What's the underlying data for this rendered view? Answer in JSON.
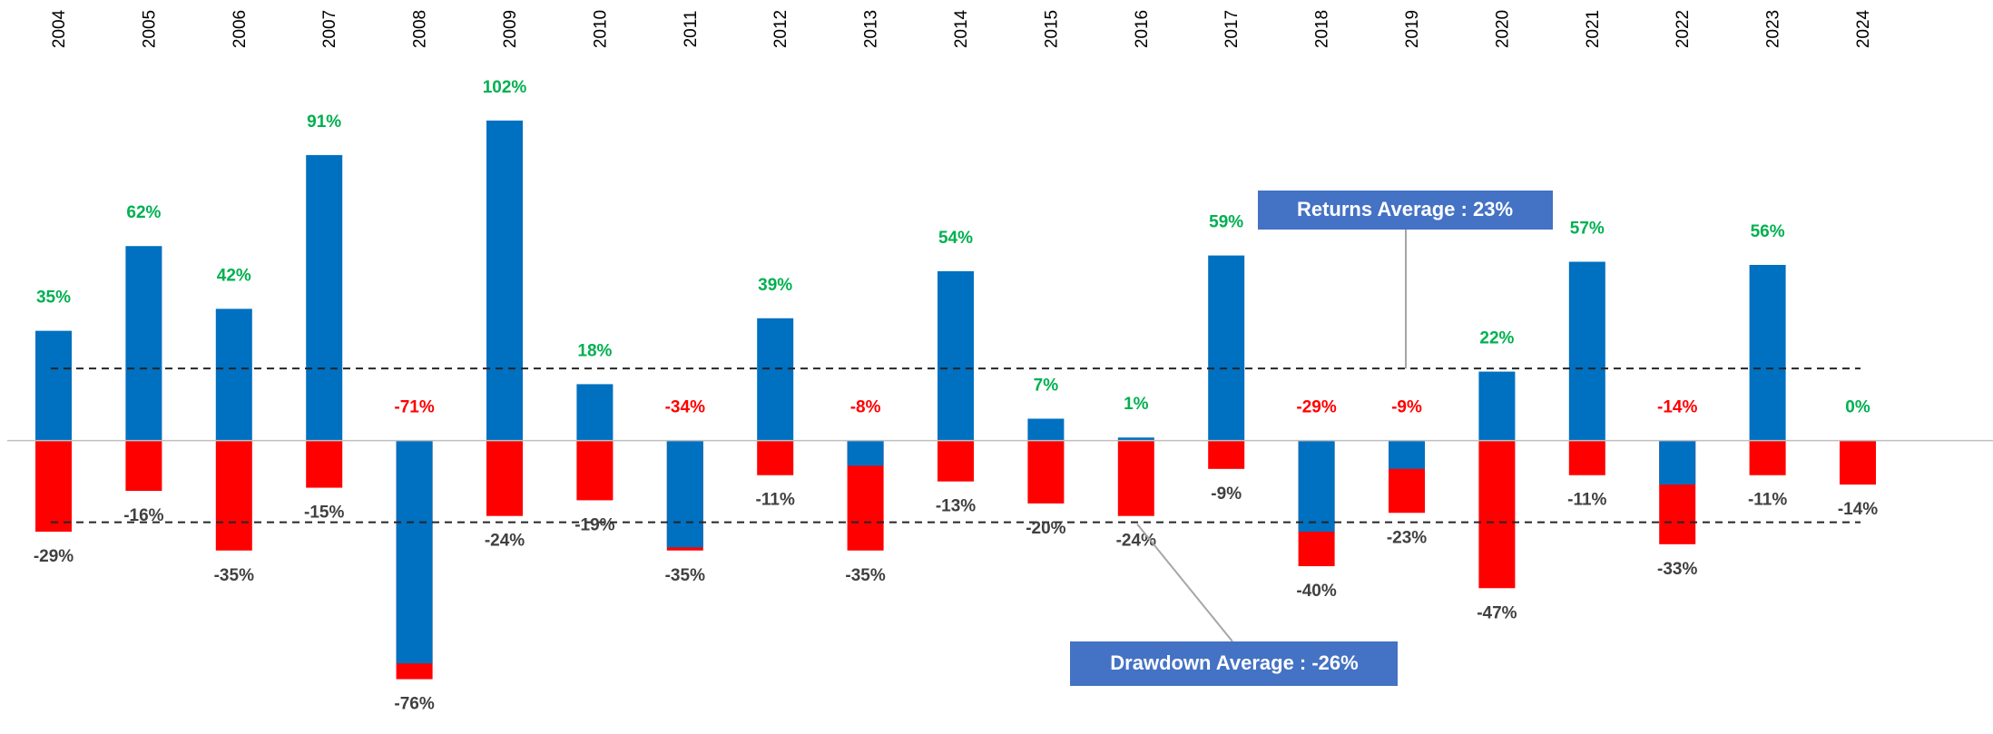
{
  "chart_data": {
    "type": "bar",
    "categories": [
      "2004",
      "2005",
      "2006",
      "2007",
      "2008",
      "2009",
      "2010",
      "2011",
      "2012",
      "2013",
      "2014",
      "2015",
      "2016",
      "2017",
      "2018",
      "2019",
      "2020",
      "2021",
      "2022",
      "2023",
      "2024"
    ],
    "series": [
      {
        "name": "Returns",
        "color": "#0070C0",
        "label_color_positive": "#00B050",
        "label_color_negative": "#FF0000",
        "values": [
          35,
          62,
          42,
          91,
          -71,
          102,
          18,
          -34,
          39,
          -8,
          54,
          7,
          1,
          59,
          -29,
          -9,
          22,
          57,
          -14,
          56,
          0
        ],
        "value_labels": [
          "35%",
          "62%",
          "42%",
          "91%",
          "-71%",
          "102%",
          "18%",
          "-34%",
          "39%",
          "-8%",
          "54%",
          "7%",
          "1%",
          "59%",
          "-29%",
          "-9%",
          "22%",
          "57%",
          "-14%",
          "56%",
          "0%"
        ]
      },
      {
        "name": "Drawdown",
        "color": "#FF0000",
        "label_color": "#404040",
        "values": [
          -29,
          -16,
          -35,
          -15,
          -76,
          -24,
          -19,
          -35,
          -11,
          -35,
          -13,
          -20,
          -24,
          -9,
          -40,
          -23,
          -47,
          -11,
          -33,
          -11,
          -14
        ],
        "value_labels": [
          "-29%",
          "-16%",
          "-35%",
          "-15%",
          "-76%",
          "-24%",
          "-19%",
          "-35%",
          "-11%",
          "-35%",
          "-13%",
          "-20%",
          "-24%",
          "-9%",
          "-40%",
          "-23%",
          "-47%",
          "-11%",
          "-33%",
          "-11%",
          "-14%"
        ]
      }
    ],
    "averages": [
      {
        "label": "Returns Average : 23%",
        "value": 23
      },
      {
        "label": "Drawdown Average : -26%",
        "value": -26
      }
    ],
    "ylim": [
      -90,
      130
    ],
    "annotation_color": "#4472C4"
  }
}
